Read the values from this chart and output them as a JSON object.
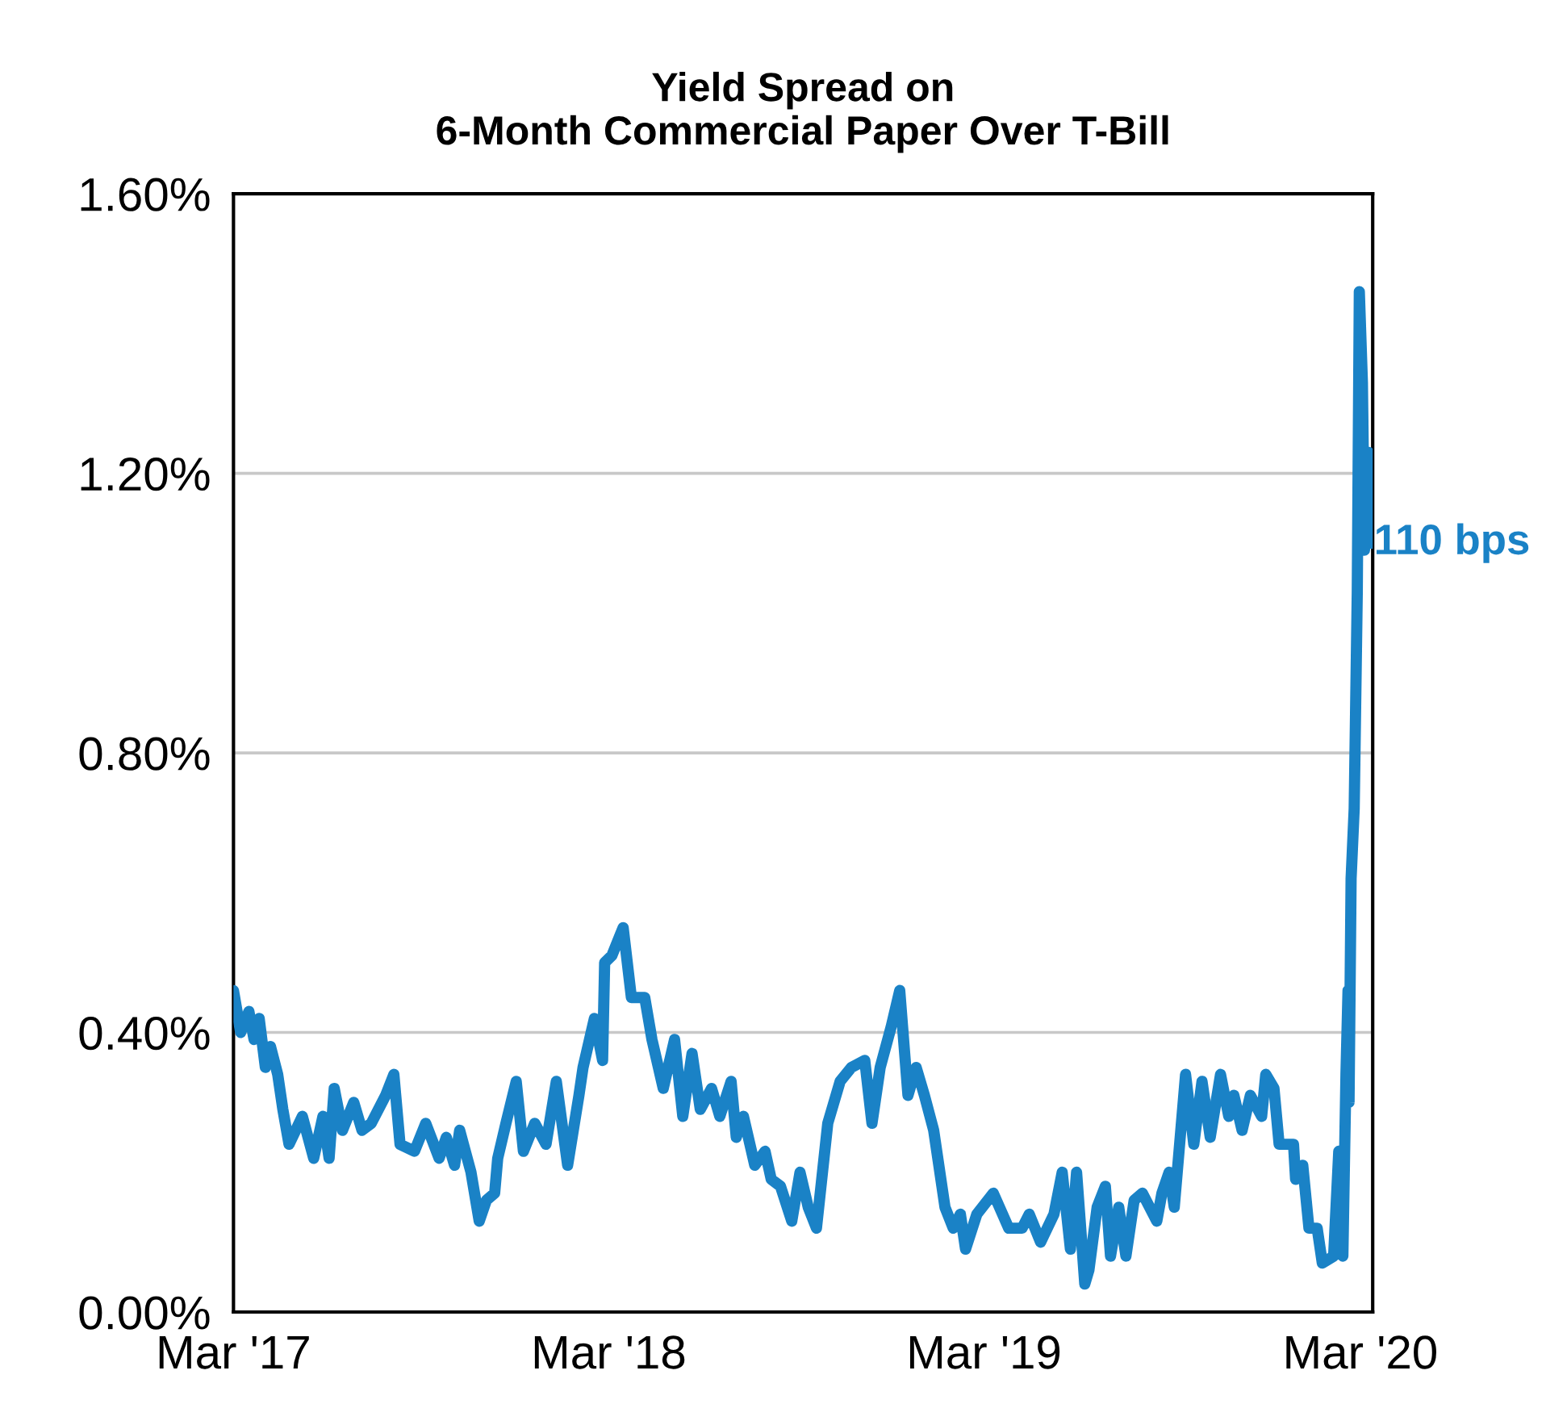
{
  "chart_data": {
    "type": "line",
    "title": "Yield Spread on\n6-Month Commercial Paper Over T-Bill",
    "x": [
      "2017-03-01",
      "2017-03-08",
      "2017-03-16",
      "2017-03-21",
      "2017-03-26",
      "2017-04-01",
      "2017-04-06",
      "2017-04-13",
      "2017-04-18",
      "2017-04-24",
      "2017-05-07",
      "2017-05-18",
      "2017-05-27",
      "2017-06-02",
      "2017-06-07",
      "2017-06-15",
      "2017-06-26",
      "2017-07-04",
      "2017-07-13",
      "2017-07-27",
      "2017-08-04",
      "2017-08-10",
      "2017-08-24",
      "2017-09-04",
      "2017-09-17",
      "2017-09-24",
      "2017-10-02",
      "2017-10-07",
      "2017-10-18",
      "2017-10-26",
      "2017-11-02",
      "2017-11-10",
      "2017-11-13",
      "2017-11-21",
      "2017-12-01",
      "2017-12-08",
      "2017-12-19",
      "2017-12-30",
      "2018-01-09",
      "2018-01-20",
      "2018-01-31",
      "2018-02-04",
      "2018-02-15",
      "2018-02-23",
      "2018-02-25",
      "2018-03-04",
      "2018-03-15",
      "2018-03-23",
      "2018-04-05",
      "2018-04-12",
      "2018-04-23",
      "2018-05-04",
      "2018-05-12",
      "2018-05-21",
      "2018-05-29",
      "2018-06-09",
      "2018-06-17",
      "2018-06-28",
      "2018-07-03",
      "2018-07-10",
      "2018-07-21",
      "2018-07-31",
      "2018-08-06",
      "2018-08-15",
      "2018-08-26",
      "2018-09-03",
      "2018-09-11",
      "2018-09-19",
      "2018-09-30",
      "2018-10-12",
      "2018-10-23",
      "2018-11-05",
      "2018-11-12",
      "2018-11-20",
      "2018-12-01",
      "2018-12-09",
      "2018-12-17",
      "2018-12-25",
      "2019-01-02",
      "2019-01-11",
      "2019-01-22",
      "2019-01-30",
      "2019-02-06",
      "2019-02-11",
      "2019-02-22",
      "2019-03-10",
      "2019-03-25",
      "2019-04-07",
      "2019-04-14",
      "2019-04-25",
      "2019-05-08",
      "2019-05-16",
      "2019-05-24",
      "2019-05-30",
      "2019-06-07",
      "2019-06-11",
      "2019-06-19",
      "2019-06-27",
      "2019-07-02",
      "2019-07-10",
      "2019-07-17",
      "2019-07-25",
      "2019-08-02",
      "2019-08-16",
      "2019-08-21",
      "2019-08-28",
      "2019-09-02",
      "2019-09-13",
      "2019-09-21",
      "2019-09-29",
      "2019-10-07",
      "2019-10-17",
      "2019-10-25",
      "2019-10-30",
      "2019-11-07",
      "2019-11-15",
      "2019-11-26",
      "2019-11-30",
      "2019-12-08",
      "2019-12-13",
      "2019-12-27",
      "2019-12-29",
      "2020-01-05",
      "2020-01-11",
      "2020-01-19",
      "2020-01-24",
      "2020-02-04",
      "2020-02-09",
      "2020-02-13",
      "2020-02-16",
      "2020-02-18",
      "2020-02-19",
      "2020-02-21",
      "2020-02-24",
      "2020-02-27",
      "2020-02-29",
      "2020-03-03",
      "2020-03-05",
      "2020-03-09",
      "2020-03-12"
    ],
    "series": [
      {
        "color": "#1a82c6",
        "values": [
          0.46,
          0.4,
          0.43,
          0.39,
          0.42,
          0.35,
          0.38,
          0.34,
          0.29,
          0.24,
          0.28,
          0.22,
          0.28,
          0.22,
          0.32,
          0.26,
          0.3,
          0.26,
          0.27,
          0.31,
          0.34,
          0.24,
          0.23,
          0.27,
          0.22,
          0.25,
          0.21,
          0.26,
          0.2,
          0.13,
          0.16,
          0.17,
          0.22,
          0.27,
          0.33,
          0.23,
          0.27,
          0.24,
          0.33,
          0.21,
          0.31,
          0.35,
          0.42,
          0.36,
          0.5,
          0.51,
          0.55,
          0.45,
          0.45,
          0.39,
          0.32,
          0.39,
          0.28,
          0.37,
          0.29,
          0.32,
          0.28,
          0.33,
          0.25,
          0.28,
          0.21,
          0.23,
          0.19,
          0.18,
          0.13,
          0.2,
          0.15,
          0.12,
          0.27,
          0.33,
          0.35,
          0.36,
          0.27,
          0.35,
          0.41,
          0.46,
          0.31,
          0.35,
          0.31,
          0.26,
          0.15,
          0.12,
          0.14,
          0.09,
          0.14,
          0.17,
          0.12,
          0.12,
          0.14,
          0.1,
          0.14,
          0.2,
          0.09,
          0.2,
          0.04,
          0.06,
          0.15,
          0.18,
          0.08,
          0.15,
          0.08,
          0.16,
          0.17,
          0.13,
          0.17,
          0.2,
          0.15,
          0.34,
          0.24,
          0.33,
          0.25,
          0.34,
          0.28,
          0.31,
          0.26,
          0.31,
          0.28,
          0.34,
          0.32,
          0.24,
          0.24,
          0.19,
          0.21,
          0.12,
          0.12,
          0.07,
          0.08,
          0.23,
          0.08,
          0.34,
          0.46,
          0.3,
          0.62,
          0.72,
          1.03,
          1.46,
          1.33,
          1.09,
          1.23,
          1.1
        ]
      }
    ],
    "xlim": [
      "2017-03-01",
      "2020-03-13"
    ],
    "xticks": [
      {
        "value": "2017-03-01",
        "label": "Mar '17"
      },
      {
        "value": "2018-03-01",
        "label": "Mar '18"
      },
      {
        "value": "2019-03-01",
        "label": "Mar '19"
      },
      {
        "value": "2020-03-01",
        "label": "Mar '20"
      }
    ],
    "ylim": [
      0,
      1.6
    ],
    "yticks": [
      {
        "value": 0,
        "label": "0.00%"
      },
      {
        "value": 0.4,
        "label": "0.40%"
      },
      {
        "value": 0.8,
        "label": "0.80%"
      },
      {
        "value": 1.2,
        "label": "1.20%"
      },
      {
        "value": 1.6,
        "label": "1.60%"
      }
    ],
    "grid": "y",
    "marker": "none",
    "line_style": "solid",
    "annotations": [
      {
        "text": "110 bps",
        "x": "2020-03-12",
        "y": 1.1
      }
    ]
  }
}
